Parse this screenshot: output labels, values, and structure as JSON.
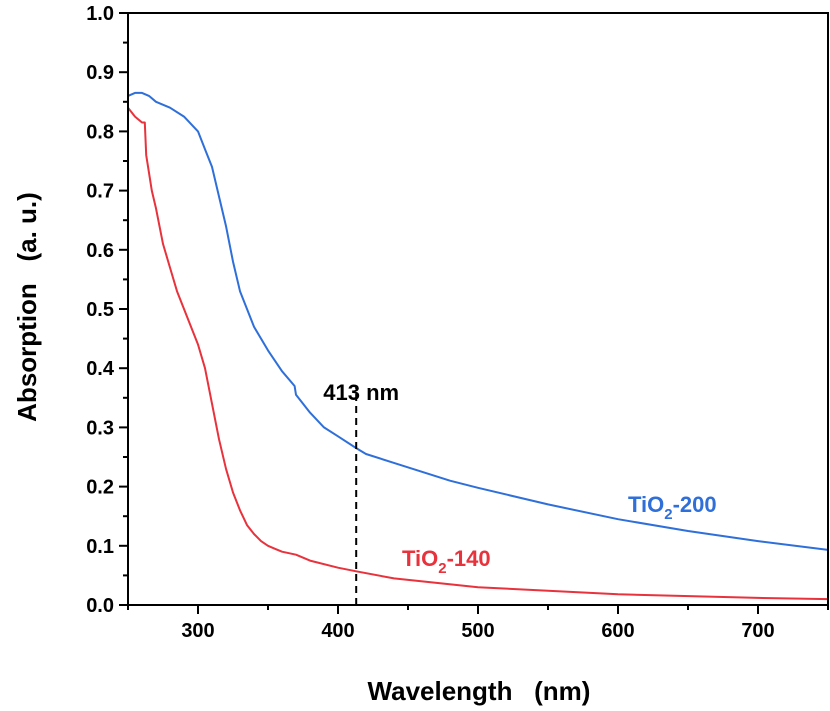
{
  "chart_data": {
    "type": "line",
    "xlabel": "Wavelength   (nm)",
    "ylabel": "Absorption   (a. u.)",
    "xlim": [
      250,
      750
    ],
    "ylim": [
      0.0,
      1.0
    ],
    "x_ticks": [
      300,
      400,
      500,
      600,
      700
    ],
    "x_tick_labels": [
      "300",
      "400",
      "500",
      "600",
      "700"
    ],
    "y_ticks": [
      0.0,
      0.1,
      0.2,
      0.3,
      0.4,
      0.5,
      0.6,
      0.7,
      0.8,
      0.9,
      1.0
    ],
    "y_tick_labels": [
      "0.0",
      "0.1",
      "0.2",
      "0.3",
      "0.4",
      "0.5",
      "0.6",
      "0.7",
      "0.8",
      "0.9",
      "1.0"
    ],
    "series": [
      {
        "name": "TiO2-200",
        "label_main": "TiO",
        "label_sub": "2",
        "label_suffix": "-200",
        "color": "#2f6fd9",
        "x": [
          250,
          255,
          260,
          265,
          270,
          280,
          290,
          300,
          305,
          310,
          315,
          320,
          325,
          330,
          340,
          350,
          360,
          369,
          370,
          380,
          390,
          400,
          413,
          420,
          440,
          460,
          480,
          500,
          550,
          600,
          650,
          700,
          750
        ],
        "y": [
          0.86,
          0.865,
          0.865,
          0.86,
          0.85,
          0.84,
          0.825,
          0.8,
          0.77,
          0.74,
          0.69,
          0.64,
          0.58,
          0.53,
          0.47,
          0.43,
          0.395,
          0.37,
          0.355,
          0.325,
          0.3,
          0.285,
          0.265,
          0.255,
          0.24,
          0.225,
          0.21,
          0.198,
          0.17,
          0.145,
          0.125,
          0.108,
          0.093
        ]
      },
      {
        "name": "TiO2-140",
        "label_main": "TiO",
        "label_sub": "2",
        "label_suffix": "-140",
        "color": "#e8323c",
        "x": [
          250,
          255,
          260,
          262,
          263,
          265,
          267,
          270,
          275,
          280,
          285,
          290,
          295,
          300,
          305,
          310,
          315,
          320,
          325,
          330,
          335,
          340,
          345,
          350,
          355,
          360,
          370,
          380,
          400,
          413,
          440,
          500,
          600,
          700,
          750
        ],
        "y": [
          0.84,
          0.825,
          0.815,
          0.815,
          0.76,
          0.73,
          0.7,
          0.67,
          0.61,
          0.57,
          0.53,
          0.5,
          0.47,
          0.44,
          0.4,
          0.34,
          0.28,
          0.23,
          0.19,
          0.16,
          0.135,
          0.12,
          0.108,
          0.1,
          0.095,
          0.09,
          0.085,
          0.075,
          0.063,
          0.057,
          0.045,
          0.03,
          0.018,
          0.012,
          0.01
        ]
      }
    ],
    "annotation": {
      "text": "413 nm",
      "x": 413,
      "y_from": 0.0,
      "y_to": 0.37
    }
  }
}
